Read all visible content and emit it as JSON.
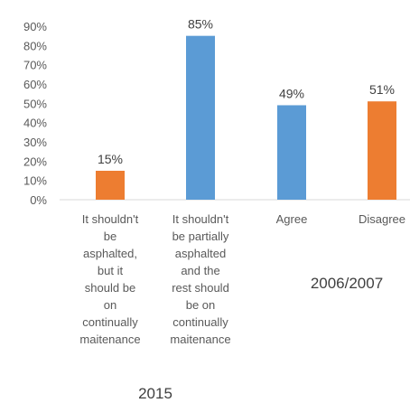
{
  "chart_data": {
    "type": "bar",
    "title": "",
    "xlabel": "",
    "ylabel": "",
    "ylim": [
      0,
      90
    ],
    "yticks": [
      "0%",
      "10%",
      "20%",
      "30%",
      "40%",
      "50%",
      "60%",
      "70%",
      "80%",
      "90%"
    ],
    "grid": false,
    "legend": "none",
    "categories": [
      [
        "It shouldn't",
        "be",
        "asphalted,",
        "but it",
        "should be",
        "on",
        "continually",
        "maitenance"
      ],
      [
        "It shouldn't",
        "be partially",
        "asphalted",
        "and the",
        "rest should",
        "be on",
        "continually",
        "maitenance"
      ],
      [
        "Agree"
      ],
      [
        "Disagree"
      ]
    ],
    "values": [
      15,
      85,
      49,
      51
    ],
    "data_labels": [
      "15%",
      "85%",
      "49%",
      "51%"
    ],
    "bar_colors": [
      "#ED7D31",
      "#5B9BD5",
      "#5B9BD5",
      "#ED7D31"
    ],
    "groups": [
      {
        "label": "2015",
        "categories": [
          0,
          1
        ]
      },
      {
        "label": "2006/2007",
        "categories": [
          2,
          3
        ]
      }
    ]
  }
}
